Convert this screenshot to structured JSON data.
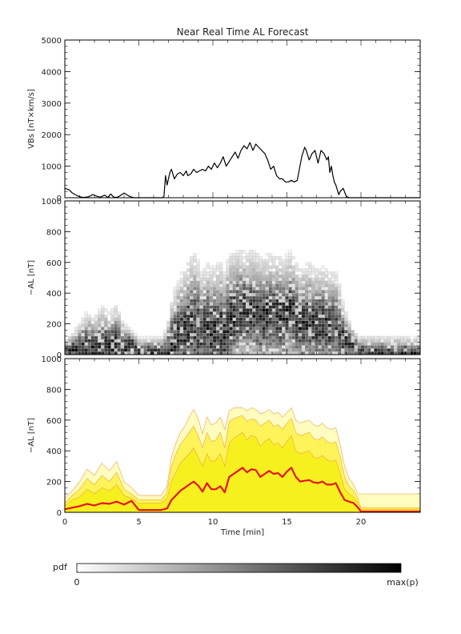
{
  "title": "Near Real Time AL Forecast",
  "colors": {
    "vbs_line": "#000000",
    "al_median": "#e8131c",
    "band_outer": "#fffcc0",
    "band_mid": "#fff35a",
    "band_inner": "#f6f01e",
    "band_edge": "#f0a040",
    "pdf_low": "#ffffff",
    "pdf_high": "#000000"
  },
  "chart_data": [
    {
      "type": "line",
      "panel": "top",
      "ylabel": "VBs [nT×km/s]",
      "ylim": [
        0,
        5000
      ],
      "yticks": [
        0,
        1000,
        2000,
        3000,
        4000,
        5000
      ],
      "xlim": [
        0,
        24
      ],
      "series": [
        {
          "x": [
            0,
            0.3,
            0.5,
            0.7,
            0.9,
            1.1,
            1.3,
            1.6,
            1.9,
            2.2,
            2.4,
            2.7,
            2.9,
            3.1,
            3.3,
            3.5,
            3.7,
            4.0,
            4.3,
            4.5,
            4.7,
            5.0,
            6.6,
            6.7,
            6.8,
            6.9,
            7.0,
            7.1,
            7.2,
            7.4,
            7.6,
            7.8,
            8.0,
            8.2,
            8.3,
            8.5,
            8.7,
            8.9,
            9.1,
            9.3,
            9.5,
            9.7,
            9.9,
            10.1,
            10.3,
            10.5,
            10.7,
            10.9,
            11.1,
            11.3,
            11.5,
            11.7,
            11.9,
            12.1,
            12.3,
            12.5,
            12.7,
            12.9,
            13.1,
            13.3,
            13.5,
            13.7,
            13.9,
            14.1,
            14.3,
            14.5,
            14.7,
            14.9,
            15.1,
            15.3,
            15.5,
            15.7,
            16.0,
            16.2,
            16.3,
            16.5,
            16.7,
            16.9,
            17.1,
            17.3,
            17.5,
            17.7,
            17.8,
            17.9,
            18.0,
            18.1,
            18.2,
            18.3,
            18.5,
            18.6,
            18.8,
            19.0,
            19.2,
            20,
            24
          ],
          "y": [
            300,
            250,
            150,
            100,
            50,
            20,
            10,
            30,
            100,
            40,
            20,
            80,
            10,
            120,
            20,
            10,
            50,
            150,
            60,
            20,
            0,
            0,
            0,
            50,
            700,
            400,
            600,
            800,
            900,
            600,
            750,
            800,
            700,
            850,
            700,
            750,
            900,
            800,
            850,
            900,
            850,
            1000,
            900,
            1100,
            950,
            1100,
            1300,
            1000,
            1150,
            1300,
            1450,
            1250,
            1500,
            1650,
            1550,
            1750,
            1500,
            1700,
            1600,
            1500,
            1400,
            1200,
            900,
            1000,
            700,
            600,
            600,
            500,
            500,
            550,
            500,
            550,
            1300,
            1600,
            1500,
            1200,
            1400,
            1500,
            1100,
            1500,
            1400,
            1200,
            1300,
            800,
            1000,
            700,
            500,
            400,
            100,
            200,
            300,
            50,
            0,
            0,
            0
          ]
        }
      ]
    },
    {
      "type": "heatmap",
      "panel": "middle",
      "ylabel": "−AL [nT]",
      "ylim": [
        0,
        1000
      ],
      "yticks": [
        0,
        200,
        400,
        600,
        800,
        1000
      ],
      "xlim": [
        0,
        24
      ],
      "value_range": [
        "0",
        "max(p)"
      ]
    },
    {
      "type": "area",
      "panel": "bottom",
      "ylabel": "−AL [nT]",
      "ylim": [
        0,
        1000
      ],
      "yticks": [
        0,
        200,
        400,
        600,
        800,
        1000
      ],
      "xlabel": "Time [min]",
      "xlim": [
        0,
        24
      ],
      "xticks": [
        0,
        5,
        10,
        15,
        20
      ],
      "x": [
        0,
        0.5,
        1.0,
        1.5,
        2.0,
        2.5,
        3.0,
        3.5,
        4.0,
        4.5,
        5.0,
        5.5,
        6.0,
        6.5,
        6.9,
        7.2,
        7.5,
        7.8,
        8.1,
        8.4,
        8.7,
        9.0,
        9.3,
        9.6,
        9.9,
        10.2,
        10.5,
        10.8,
        11.1,
        11.4,
        11.7,
        12.0,
        12.3,
        12.6,
        12.9,
        13.2,
        13.5,
        13.8,
        14.1,
        14.4,
        14.7,
        15.0,
        15.3,
        15.6,
        15.9,
        16.2,
        16.5,
        16.8,
        17.1,
        17.4,
        17.7,
        18.0,
        18.3,
        18.6,
        18.9,
        19.2,
        19.5,
        19.8,
        20.0,
        22,
        24
      ],
      "median": [
        20,
        30,
        40,
        55,
        45,
        60,
        55,
        70,
        50,
        75,
        15,
        15,
        15,
        15,
        25,
        80,
        110,
        140,
        160,
        180,
        200,
        175,
        135,
        190,
        150,
        150,
        170,
        130,
        230,
        250,
        270,
        290,
        260,
        280,
        275,
        230,
        250,
        270,
        250,
        255,
        230,
        265,
        290,
        230,
        200,
        205,
        210,
        195,
        190,
        200,
        180,
        180,
        190,
        130,
        80,
        70,
        60,
        30,
        5,
        5,
        5
      ],
      "q_inner": [
        40,
        80,
        100,
        150,
        120,
        160,
        140,
        180,
        110,
        90,
        60,
        60,
        60,
        60,
        90,
        200,
        260,
        320,
        350,
        380,
        420,
        360,
        300,
        380,
        330,
        340,
        380,
        300,
        450,
        480,
        500,
        520,
        470,
        500,
        490,
        430,
        460,
        480,
        440,
        450,
        420,
        460,
        500,
        400,
        380,
        390,
        400,
        360,
        350,
        370,
        340,
        330,
        340,
        250,
        150,
        120,
        100,
        60,
        20,
        20,
        20
      ],
      "q_mid": [
        60,
        110,
        150,
        220,
        180,
        240,
        200,
        260,
        150,
        120,
        80,
        80,
        80,
        80,
        130,
        300,
        380,
        440,
        480,
        520,
        560,
        500,
        420,
        520,
        460,
        470,
        520,
        420,
        590,
        610,
        620,
        630,
        590,
        610,
        600,
        560,
        580,
        600,
        560,
        570,
        540,
        580,
        610,
        520,
        500,
        510,
        520,
        480,
        470,
        490,
        460,
        450,
        460,
        360,
        230,
        170,
        140,
        90,
        30,
        30,
        30
      ],
      "q_outer": [
        90,
        140,
        200,
        280,
        240,
        320,
        270,
        330,
        200,
        160,
        110,
        110,
        110,
        110,
        170,
        360,
        450,
        520,
        560,
        620,
        670,
        610,
        510,
        620,
        570,
        580,
        620,
        540,
        660,
        680,
        680,
        680,
        660,
        680,
        670,
        640,
        650,
        670,
        640,
        650,
        620,
        650,
        680,
        600,
        580,
        590,
        600,
        570,
        560,
        580,
        550,
        540,
        550,
        440,
        300,
        220,
        180,
        120,
        120,
        120,
        120
      ]
    }
  ],
  "legend": {
    "label": "pdf",
    "min_label": "0",
    "max_label": "max(p)"
  }
}
